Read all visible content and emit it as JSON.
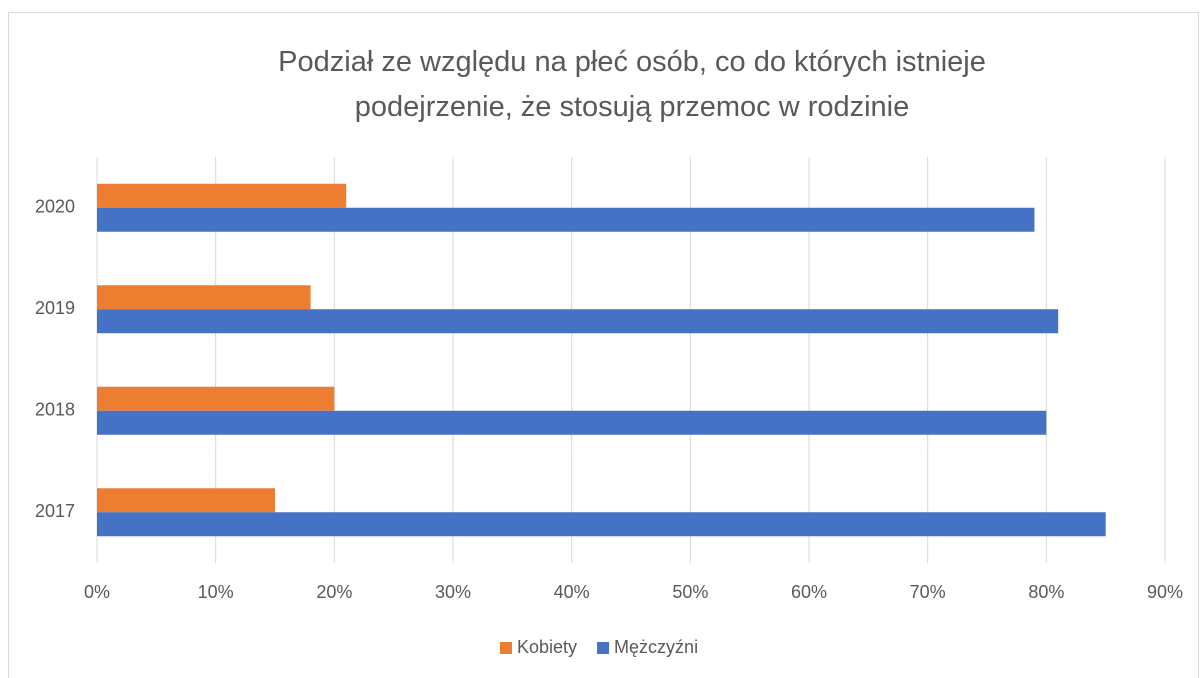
{
  "chart_data": {
    "type": "barh",
    "title": "Podział ze względu na płeć osób, co do których istnieje podejrzenie, że stosują przemoc w rodzinie",
    "categories": [
      "2017",
      "2018",
      "2019",
      "2020"
    ],
    "series": [
      {
        "name": "Kobiety",
        "color": "#ed7d31",
        "values": [
          15,
          20,
          18,
          21
        ]
      },
      {
        "name": "Mężczyźni",
        "color": "#4472c4",
        "values": [
          85,
          80,
          81,
          79
        ]
      }
    ],
    "xlim": [
      0,
      90
    ],
    "xticks": [
      {
        "value": 0,
        "label": "0%"
      },
      {
        "value": 10,
        "label": "10%"
      },
      {
        "value": 20,
        "label": "20%"
      },
      {
        "value": 30,
        "label": "30%"
      },
      {
        "value": 40,
        "label": "40%"
      },
      {
        "value": 50,
        "label": "50%"
      },
      {
        "value": 60,
        "label": "60%"
      },
      {
        "value": 70,
        "label": "70%"
      },
      {
        "value": 80,
        "label": "80%"
      },
      {
        "value": 90,
        "label": "90%"
      }
    ],
    "grid": true,
    "legend": "bottom"
  }
}
